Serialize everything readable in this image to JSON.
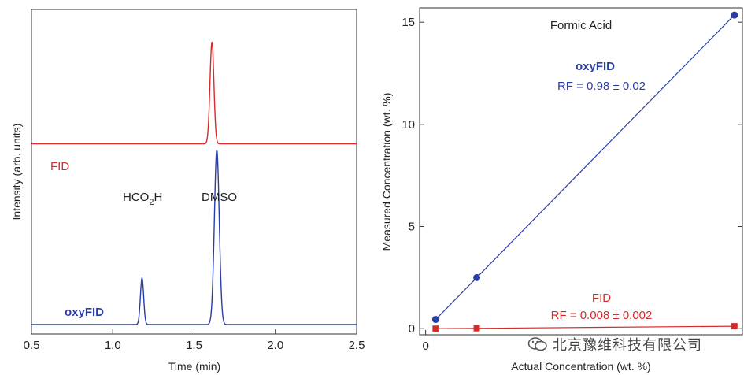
{
  "chart_data": [
    {
      "type": "line",
      "panel": "left",
      "title": "",
      "xlabel": "Time (min)",
      "ylabel": "Intensity (arb. units)",
      "xlim": [
        0.5,
        2.5
      ],
      "xticks": [
        "0.5",
        "1.0",
        "1.5",
        "2.0",
        "2.5"
      ],
      "series": [
        {
          "name": "FID",
          "color": "#d62b2b",
          "baseline": 0.62,
          "peaks": [
            {
              "x": 1.61,
              "height": 0.97,
              "width": 0.012
            }
          ]
        },
        {
          "name": "oxyFID",
          "color": "#2a3ea8",
          "baseline": 0.0,
          "peaks": [
            {
              "x": 1.18,
              "height": 0.16,
              "width": 0.01
            },
            {
              "x": 1.64,
              "height": 0.6,
              "width": 0.015
            }
          ]
        }
      ],
      "annotations": {
        "fid_label": "FID",
        "oxyfid_label": "oxyFID",
        "peak1_prefix": "HCO",
        "peak1_sub": "2",
        "peak1_suffix": "H",
        "peak2_label": "DMSO"
      }
    },
    {
      "type": "scatter",
      "panel": "right",
      "title": "Formic Acid",
      "xlabel": "Actual Concentration (wt. %)",
      "ylabel": "Measured Concentration (wt. %)",
      "xlim": [
        -0.3,
        15.8
      ],
      "ylim": [
        -0.3,
        15.7
      ],
      "xticks": [
        0
      ],
      "yticks": [
        0,
        5,
        10,
        15
      ],
      "series": [
        {
          "name": "oxyFID",
          "color": "#2a3ea8",
          "marker": "circle",
          "x": [
            0.5,
            2.55,
            15.4
          ],
          "y": [
            0.45,
            2.5,
            15.35
          ],
          "fit": {
            "slope": 0.98,
            "label": "RF = 0.98 ± 0.02"
          }
        },
        {
          "name": "FID",
          "color": "#d62b2b",
          "marker": "square",
          "x": [
            0.5,
            2.55,
            15.4
          ],
          "y": [
            0.0,
            0.02,
            0.12
          ],
          "fit": {
            "slope": 0.008,
            "label": "RF = 0.008 ± 0.002"
          }
        }
      ]
    }
  ],
  "watermark": {
    "text": "北京豫维科技有限公司",
    "icon": "wechat-icon"
  }
}
